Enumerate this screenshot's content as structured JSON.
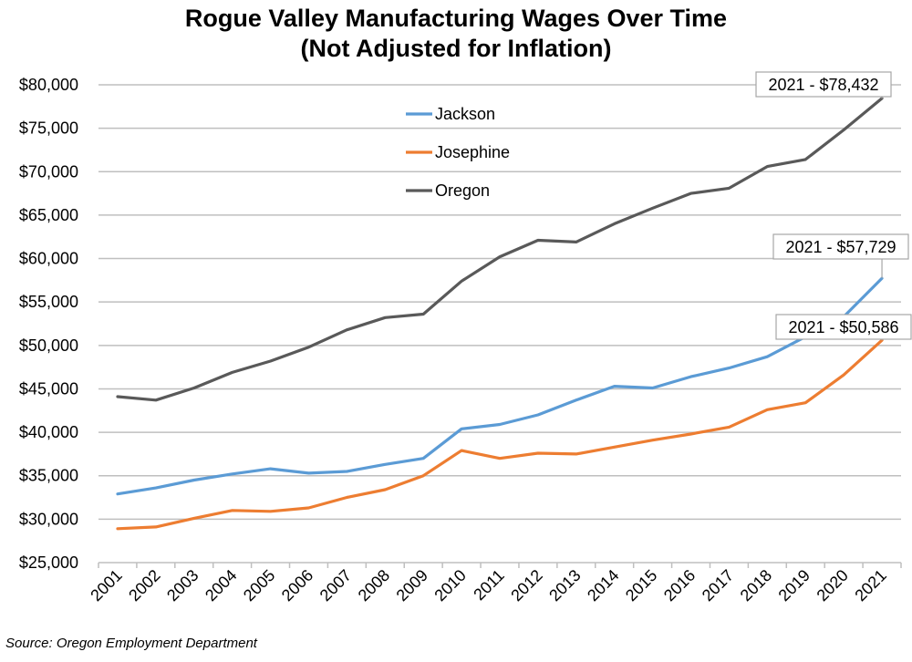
{
  "chart_data": {
    "type": "line",
    "title": "Rogue Valley Manufacturing Wages Over Time",
    "subtitle": "(Not Adjusted for Inflation)",
    "xlabel": "",
    "ylabel": "",
    "categories": [
      "2001",
      "2002",
      "2003",
      "2004",
      "2005",
      "2006",
      "2007",
      "2008",
      "2009",
      "2010",
      "2011",
      "2012",
      "2013",
      "2014",
      "2015",
      "2016",
      "2017",
      "2018",
      "2019",
      "2020",
      "2021"
    ],
    "ylim": [
      25000,
      80000
    ],
    "ystep": 5000,
    "ytick_labels": [
      "$25,000",
      "$30,000",
      "$35,000",
      "$40,000",
      "$45,000",
      "$50,000",
      "$55,000",
      "$60,000",
      "$65,000",
      "$70,000",
      "$75,000",
      "$80,000"
    ],
    "grid": true,
    "legend_position": "top-center",
    "series": [
      {
        "name": "Jackson",
        "color": "#5B9BD5",
        "values": [
          32900,
          33600,
          34500,
          35200,
          35800,
          35300,
          35500,
          36300,
          37000,
          40400,
          40900,
          42000,
          43700,
          45300,
          45100,
          46400,
          47400,
          48700,
          51000,
          53300,
          57729
        ]
      },
      {
        "name": "Josephine",
        "color": "#ED7D31",
        "values": [
          28900,
          29100,
          30100,
          31000,
          30900,
          31300,
          32500,
          33400,
          35000,
          37900,
          37000,
          37600,
          37500,
          38300,
          39100,
          39800,
          40600,
          42600,
          43400,
          46600,
          50586
        ]
      },
      {
        "name": "Oregon",
        "color": "#595959",
        "values": [
          44100,
          43700,
          45100,
          46900,
          48200,
          49800,
          51800,
          53200,
          53600,
          57400,
          60200,
          62100,
          61900,
          64000,
          65800,
          67500,
          68100,
          70600,
          71400,
          74800,
          78432
        ]
      }
    ],
    "annotations": [
      {
        "text": "2021 - $78,432",
        "series": "Oregon"
      },
      {
        "text": "2021 - $57,729",
        "series": "Jackson"
      },
      {
        "text": "2021 - $50,586",
        "series": "Josephine"
      }
    ]
  },
  "source": "Source: Oregon Employment Department"
}
